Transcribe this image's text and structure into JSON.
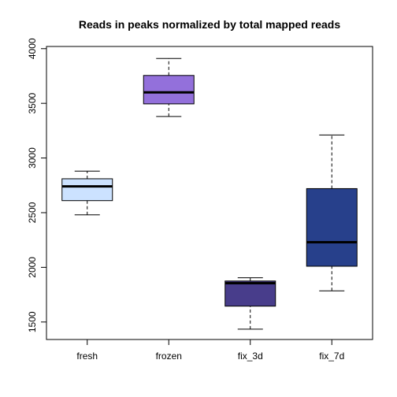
{
  "chart_data": {
    "type": "box",
    "title": "Reads in peaks normalized by total mapped reads",
    "xlabel": "",
    "ylabel": "",
    "ylim": [
      1340,
      4020
    ],
    "yticks": [
      1500,
      2000,
      2500,
      3000,
      3500,
      4000
    ],
    "categories": [
      "fresh",
      "frozen",
      "fix_3d",
      "fix_7d"
    ],
    "boxes": [
      {
        "category": "fresh",
        "min": 2480,
        "q1": 2610,
        "median": 2740,
        "q3": 2810,
        "max": 2880,
        "color": "#cce2ff"
      },
      {
        "category": "frozen",
        "min": 3380,
        "q1": 3495,
        "median": 3600,
        "q3": 3755,
        "max": 3910,
        "color": "#9370db"
      },
      {
        "category": "fix_3d",
        "min": 1435,
        "q1": 1645,
        "median": 1855,
        "q3": 1875,
        "max": 1905,
        "color": "#483d8b"
      },
      {
        "category": "fix_7d",
        "min": 1785,
        "q1": 2010,
        "median": 2230,
        "q3": 2720,
        "max": 3210,
        "color": "#27408b"
      }
    ],
    "grid": false,
    "legend": "none"
  }
}
